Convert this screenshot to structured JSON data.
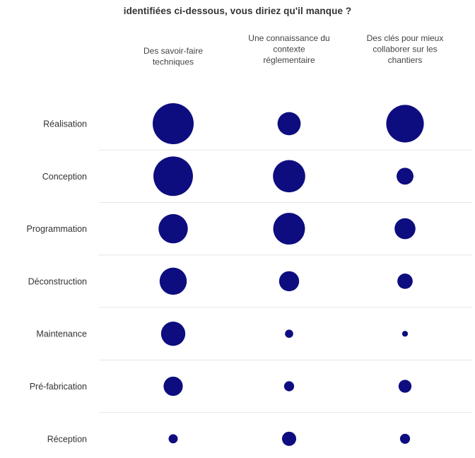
{
  "chart_data": {
    "type": "bubble-matrix",
    "title": "identifiées ci-dessous, vous diriez qu'il manque ?",
    "columns": [
      {
        "lines": [
          "Des savoir-faire",
          "techniques"
        ]
      },
      {
        "lines": [
          "Une connaissance du",
          "contexte",
          "réglementaire"
        ]
      },
      {
        "lines": [
          "Des clés pour mieux",
          "collaborer sur les",
          "chantiers"
        ]
      }
    ],
    "rows": [
      "Réalisation",
      "Conception",
      "Programmation",
      "Déconstruction",
      "Maintenance",
      "Pré-fabrication",
      "Réception"
    ],
    "values": [
      [
        100,
        32,
        84
      ],
      [
        93,
        62,
        17
      ],
      [
        51,
        60,
        26
      ],
      [
        44,
        24,
        14
      ],
      [
        35,
        4,
        2
      ],
      [
        22,
        6,
        10
      ],
      [
        5,
        12,
        6
      ]
    ],
    "grid": true,
    "legend": "none",
    "bubble_color": "#0d0d80",
    "grid_color": "#e6e6e6"
  }
}
